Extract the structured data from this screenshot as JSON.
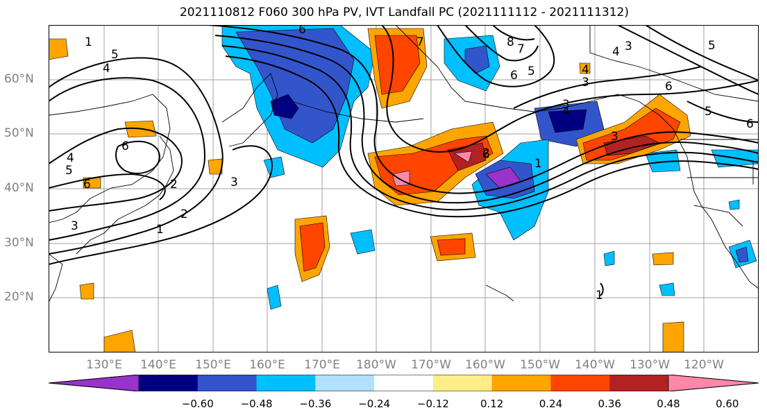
{
  "title": "2021110812 F060 300 hPa PV, IVT Landfall PC (2021111112 - 2021111312)",
  "lat_labels": [
    "60°N",
    "50°N",
    "40°N",
    "30°N",
    "20°N"
  ],
  "lon_labels": [
    "130°E",
    "140°E",
    "150°E",
    "160°E",
    "170°E",
    "180°W",
    "170°W",
    "160°W",
    "150°W",
    "140°W",
    "130°W",
    "120°W"
  ],
  "contour_labels": [
    "1",
    "2",
    "3",
    "4",
    "5",
    "6",
    "4",
    "5",
    "6",
    "1",
    "2",
    "3",
    "6",
    "7",
    "8",
    "7",
    "6",
    "5",
    "4",
    "3",
    "4",
    "3",
    "6",
    "5",
    "6",
    "4",
    "3",
    "2",
    "1",
    "6",
    "5",
    "3",
    "1"
  ],
  "colorbar": {
    "ticks": [
      "−0.60",
      "−0.48",
      "−0.36",
      "−0.24",
      "−0.12",
      "0.12",
      "0.24",
      "0.36",
      "0.48",
      "0.60"
    ],
    "colors": [
      "#9933cc",
      "#000080",
      "#3355cc",
      "#00bfff",
      "#b0e2ff",
      "#ffffff",
      "#ffee88",
      "#ffa500",
      "#ff4500",
      "#b22222",
      "#ff88aa"
    ]
  },
  "colors": {
    "grid": "#a0a0a0",
    "coast": "#000000",
    "axis_label": "#808080"
  }
}
